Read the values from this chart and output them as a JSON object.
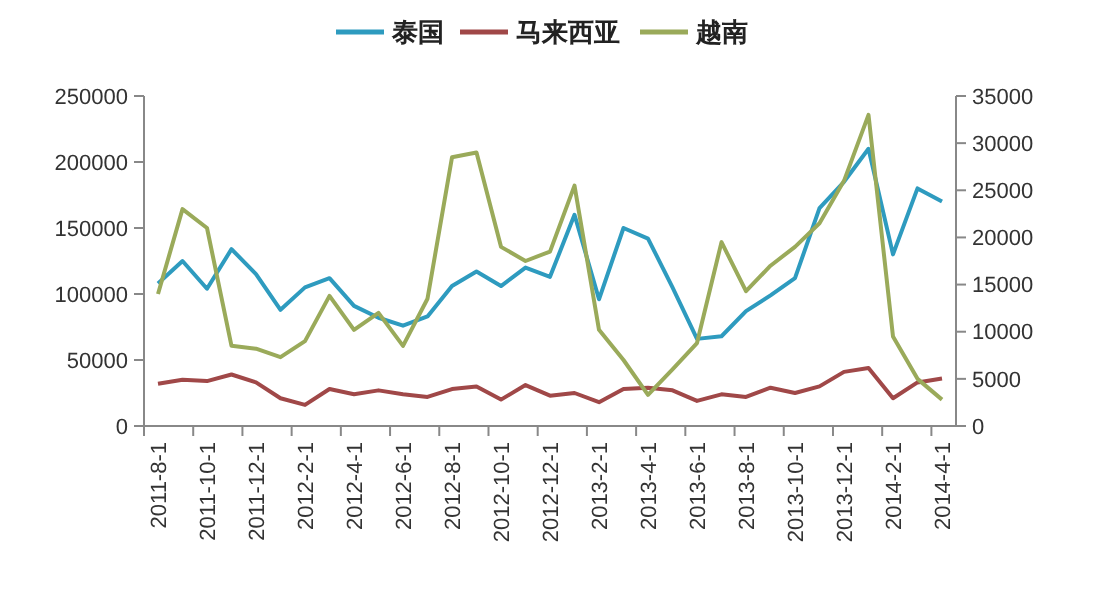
{
  "chart_data": {
    "type": "line",
    "categories": [
      "2011-8-1",
      null,
      "2011-10-1",
      null,
      "2011-12-1",
      null,
      "2012-2-1",
      null,
      "2012-4-1",
      null,
      "2012-6-1",
      null,
      "2012-8-1",
      null,
      "2012-10-1",
      null,
      "2012-12-1",
      null,
      "2013-2-1",
      null,
      "2013-4-1",
      null,
      "2013-6-1",
      null,
      "2013-8-1",
      null,
      "2013-10-1",
      null,
      "2013-12-1",
      null,
      "2014-2-1",
      null,
      "2014-4-1"
    ],
    "series": [
      {
        "name": "泰国",
        "color": "#2e9bbf",
        "values": [
          108000,
          125000,
          104000,
          134000,
          115000,
          88000,
          105000,
          112000,
          91000,
          82000,
          76000,
          83000,
          106000,
          117000,
          106000,
          120000,
          113000,
          160000,
          96000,
          150000,
          142000,
          105000,
          66000,
          68000,
          87000,
          99000,
          112000,
          165000,
          185000,
          210000,
          130000,
          180000,
          170000
        ]
      },
      {
        "name": "马来西亚",
        "color": "#a04848",
        "values": [
          32000,
          35000,
          34000,
          39000,
          33000,
          21000,
          16000,
          28000,
          24000,
          27000,
          24000,
          22000,
          28000,
          30000,
          20000,
          31000,
          23000,
          25000,
          18000,
          28000,
          29000,
          27000,
          19000,
          24000,
          22000,
          29000,
          25000,
          30000,
          41000,
          44000,
          21000,
          33000,
          36000
        ]
      },
      {
        "name": "越南",
        "color": "#9aaa5a",
        "axis": "y2",
        "values": [
          14000,
          23000,
          21000,
          8500,
          8200,
          7300,
          9000,
          13800,
          10200,
          12000,
          8500,
          13500,
          28500,
          29000,
          19000,
          17500,
          18500,
          25500,
          10200,
          7000,
          3300,
          6000,
          8800,
          19500,
          14300,
          17000,
          19000,
          21500,
          26000,
          33000,
          9500,
          5000,
          2800
        ]
      }
    ],
    "ylim": [
      0,
      250000
    ],
    "yticks": [
      0,
      50000,
      100000,
      150000,
      200000,
      250000
    ],
    "y2lim": [
      0,
      35000
    ],
    "y2ticks": [
      0,
      5000,
      10000,
      15000,
      20000,
      25000,
      30000,
      35000
    ],
    "legend": "top",
    "grid": false,
    "marker": "none",
    "line_style": "solid"
  }
}
